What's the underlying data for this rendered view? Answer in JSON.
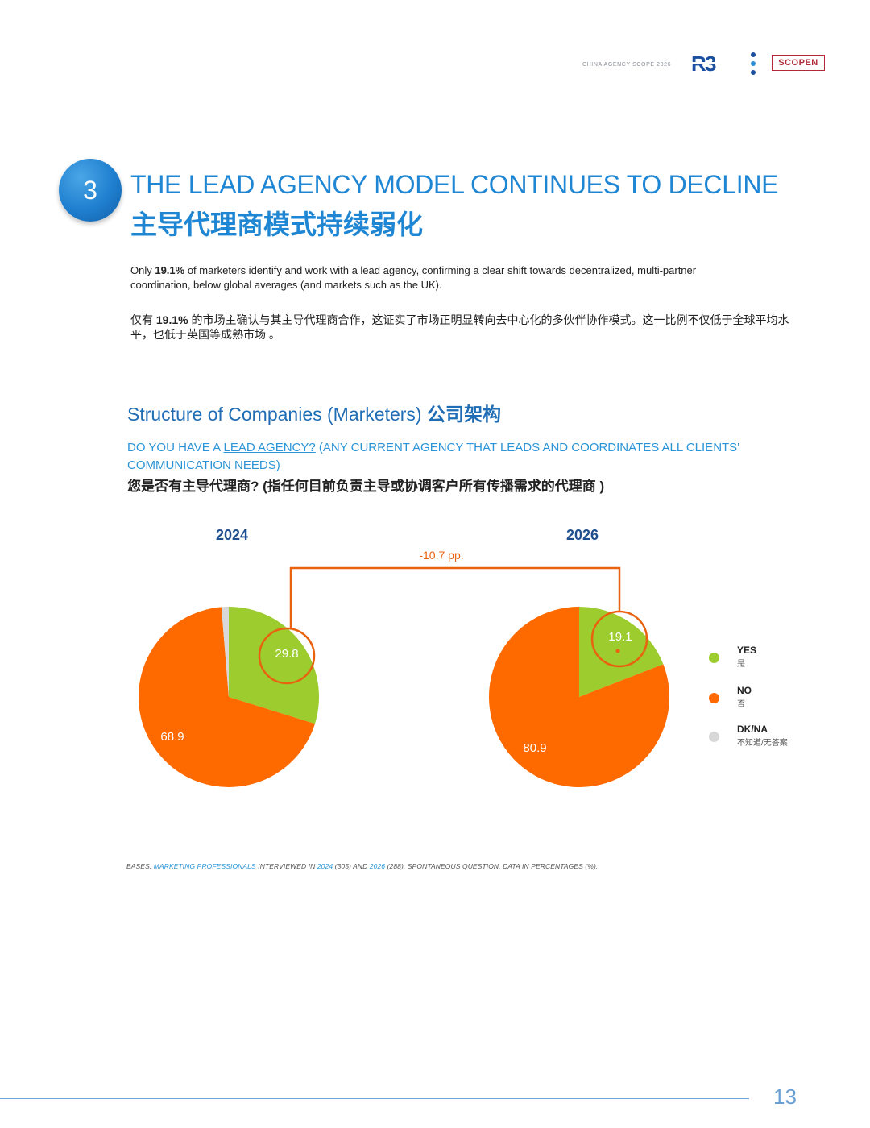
{
  "header": {
    "report_title": "CHINA AGENCY SCOPE 2026",
    "logo_text": "R3",
    "partner_logo": "SCOPEN"
  },
  "section": {
    "number": "3",
    "title_en": "THE LEAD AGENCY MODEL CONTINUES TO DECLINE",
    "title_zh": "主导代理商模式持续弱化"
  },
  "intro": {
    "en_pre": "Only ",
    "en_highlight": "19.1%",
    "en_post": " of marketers identify and work with a lead agency, confirming a clear shift towards decentralized, multi-partner coordination, below global averages (and markets such as the UK).",
    "zh_pre": "仅有 ",
    "zh_highlight": "19.1%",
    "zh_post": " 的市场主确认与其主导代理商合作，这证实了市场正明显转向去中心化的多伙伴协作模式。这一比例不仅低于全球平均水平，也低于英国等成熟市场 。"
  },
  "chart_section": {
    "title_en": "Structure of Companies (Marketers)",
    "title_zh": "公司架构",
    "question_pre": "DO YOU HAVE A ",
    "question_link": "LEAD AGENCY?",
    "question_post": " (ANY CURRENT AGENCY THAT LEADS AND COORDINATES ALL CLIENTS' COMMUNICATION NEEDS)",
    "question_zh": "您是否有主导代理商? (指任何目前负责主导或协调客户所有传播需求的代理商 )"
  },
  "chart_data": [
    {
      "type": "pie",
      "title": "2024",
      "categories": [
        "YES",
        "NO",
        "DK/NA"
      ],
      "values": [
        29.8,
        68.9,
        1.3
      ],
      "labels": [
        "29.8",
        "68.9",
        ""
      ],
      "colors": [
        "#9ccc2e",
        "#ff6a00",
        "#d8d8d8"
      ]
    },
    {
      "type": "pie",
      "title": "2026",
      "categories": [
        "YES",
        "NO",
        "DK/NA"
      ],
      "values": [
        19.1,
        80.9,
        0
      ],
      "labels": [
        "19.1",
        "80.9",
        ""
      ],
      "colors": [
        "#9ccc2e",
        "#ff6a00",
        "#d8d8d8"
      ]
    }
  ],
  "annotation": {
    "change_label": "-10.7 pp.",
    "color": "#e8620f"
  },
  "legend": [
    {
      "label": "YES",
      "sublabel": "是",
      "color": "#9ccc2e"
    },
    {
      "label": "NO",
      "sublabel": "否",
      "color": "#ff6a00"
    },
    {
      "label": "DK/NA",
      "sublabel": "不知道/无答案",
      "color": "#d8d8d8"
    }
  ],
  "bases": {
    "p1": "BASES: ",
    "p2": "MARKETING PROFESSIONALS",
    "p3": " INTERVIEWED IN ",
    "p4": "2024",
    "p5": " (305) AND ",
    "p6": "2026",
    "p7": " (288). SPONTANEOUS QUESTION. DATA IN PERCENTAGES (%)."
  },
  "page_number": "13"
}
